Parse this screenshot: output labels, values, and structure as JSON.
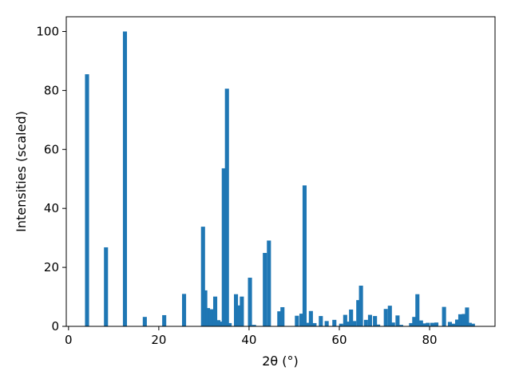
{
  "chart_data": {
    "type": "bar",
    "xlabel": "2θ (°)",
    "ylabel": "Intensities (scaled)",
    "xlim": [
      -0.5,
      94.5
    ],
    "ylim": [
      0,
      105
    ],
    "x_ticks": [
      0,
      20,
      40,
      60,
      80
    ],
    "y_ticks": [
      0,
      20,
      40,
      60,
      80,
      100
    ],
    "bar_width_units": 0.9,
    "color": "#1f77b4",
    "grid": false,
    "x": [
      4.1,
      8.3,
      12.5,
      16.9,
      21.2,
      25.6,
      29.8,
      30.3,
      30.9,
      31.6,
      32.5,
      33.2,
      33.8,
      34.4,
      35.1,
      35.7,
      37.1,
      37.8,
      38.4,
      40.2,
      41.1,
      43.5,
      44.4,
      46.7,
      47.4,
      50.6,
      51.6,
      52.3,
      52.9,
      53.7,
      54.5,
      55.9,
      57.2,
      58.9,
      60.4,
      61.3,
      61.9,
      62.6,
      63.3,
      64.2,
      64.8,
      65.9,
      66.8,
      67.9,
      68.6,
      70.3,
      71.2,
      71.9,
      72.9,
      73.7,
      75.9,
      76.6,
      77.3,
      78.1,
      78.9,
      79.6,
      80.6,
      81.5,
      83.2,
      84.5,
      85.2,
      86.1,
      86.8,
      87.6,
      88.3,
      88.9,
      89.6
    ],
    "values": [
      85.5,
      26.8,
      100,
      3.2,
      3.8,
      11,
      33.8,
      12.2,
      6.2,
      5.8,
      10.1,
      2.1,
      1.6,
      53.6,
      80.6,
      1.1,
      10.9,
      7.1,
      10.1,
      16.5,
      0.5,
      24.9,
      29.1,
      5.1,
      6.5,
      3.6,
      4.3,
      47.8,
      1.2,
      5.2,
      1.1,
      3.5,
      1.8,
      2.2,
      0.9,
      3.9,
      1.6,
      5.7,
      1.8,
      8.9,
      13.8,
      2.2,
      3.9,
      3.5,
      0.6,
      5.9,
      7,
      1.3,
      3.7,
      0.5,
      1.1,
      3.2,
      10.9,
      2,
      1,
      1.2,
      1.2,
      1.3,
      6.6,
      1.5,
      0.9,
      2.3,
      4.1,
      4.2,
      6.4,
      1.2,
      0.9
    ]
  }
}
